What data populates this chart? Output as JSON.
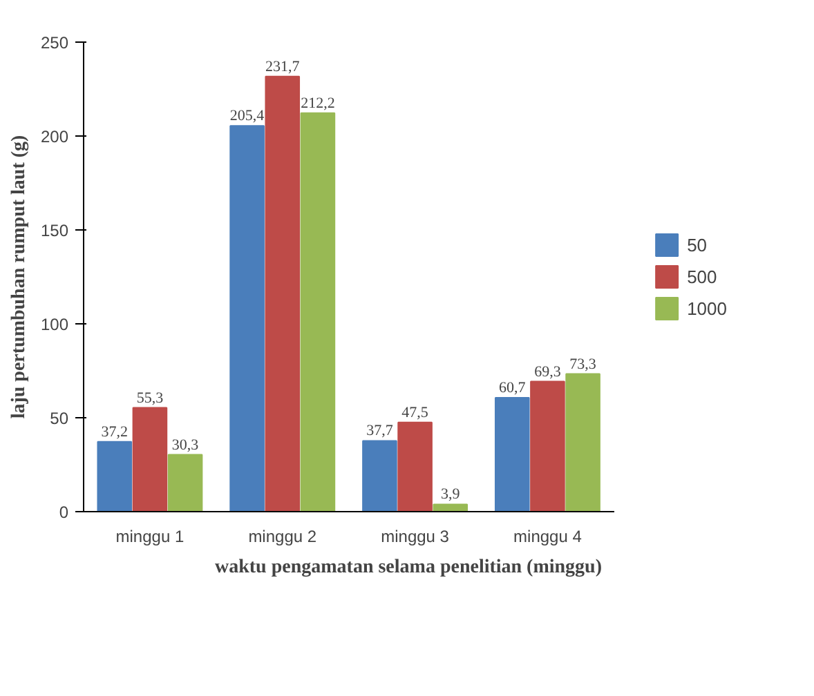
{
  "chart_data": {
    "type": "bar",
    "xlabel": "waktu pengamatan selama penelitian (minggu)",
    "ylabel": "laju pertumbuhan rumput laut (g)",
    "categories": [
      "minggu 1",
      "minggu 2",
      "minggu 3",
      "minggu 4"
    ],
    "series": [
      {
        "name": "50",
        "color": "#4a7ebb",
        "values": [
          37.2,
          205.4,
          37.7,
          60.7
        ],
        "value_labels": [
          "37,2",
          "205,4",
          "37,7",
          "60,7"
        ]
      },
      {
        "name": "500",
        "color": "#be4b48",
        "values": [
          55.3,
          231.7,
          47.5,
          69.3
        ],
        "value_labels": [
          "55,3",
          "231,7",
          "47,5",
          "69,3"
        ]
      },
      {
        "name": "1000",
        "color": "#98b954",
        "values": [
          30.3,
          212.2,
          3.9,
          73.3
        ],
        "value_labels": [
          "30,3",
          "212,2",
          "3,9",
          "73,3"
        ]
      }
    ],
    "ylim": [
      0,
      250
    ],
    "yticks": [
      0,
      50,
      100,
      150,
      200,
      250
    ],
    "legend": "right"
  }
}
